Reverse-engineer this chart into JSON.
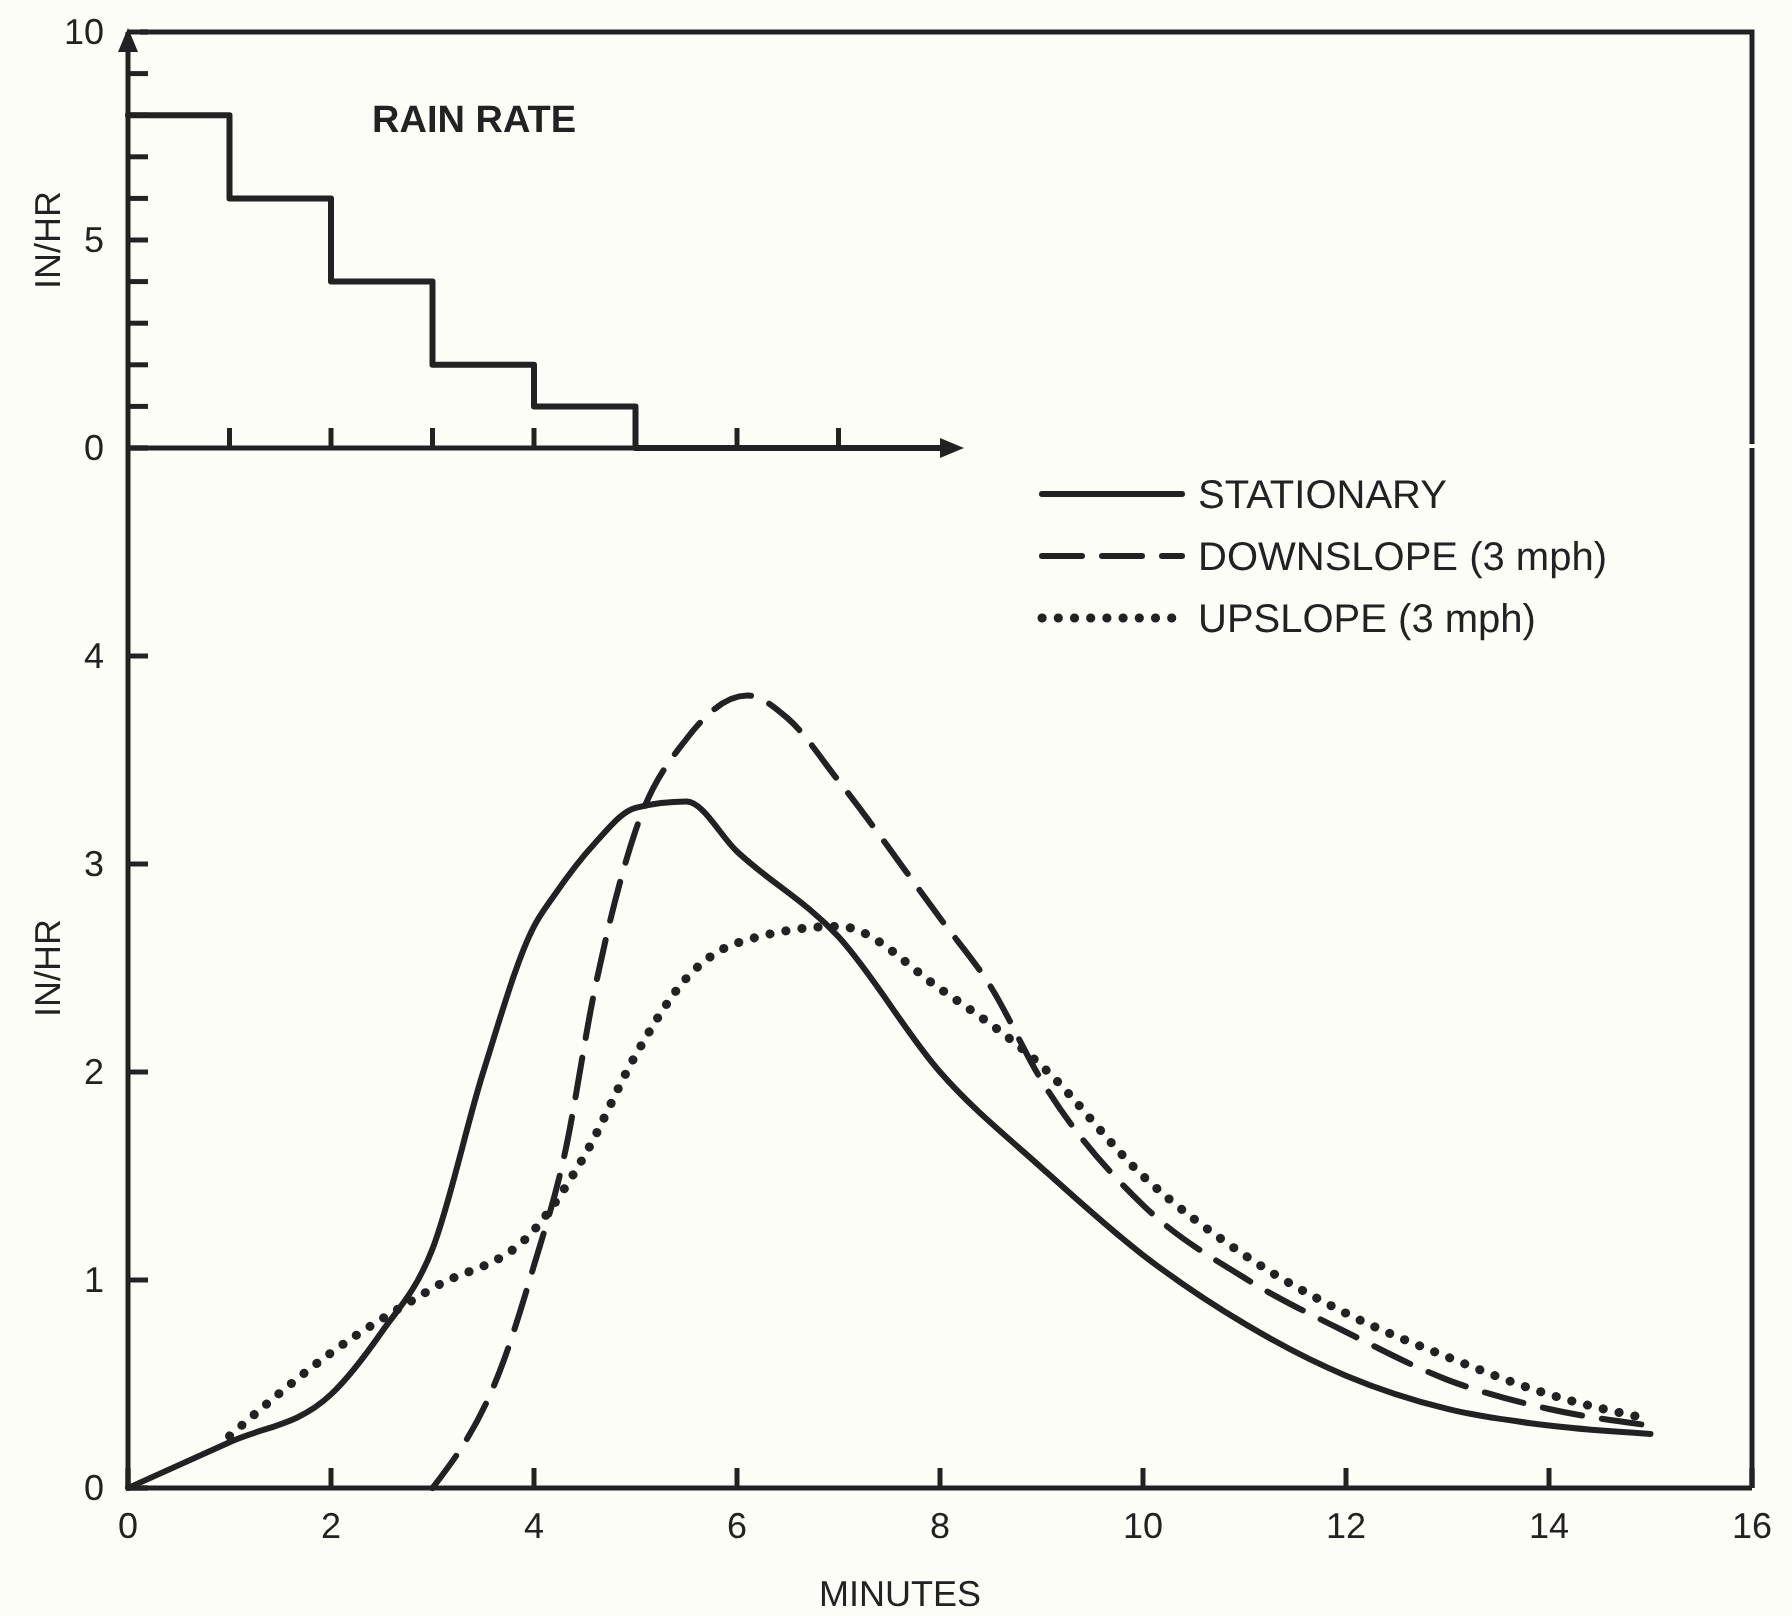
{
  "chart_data": [
    {
      "type": "step",
      "title": "RAIN RATE",
      "ylabel": "IN/HR",
      "categories": [
        null,
        null,
        null,
        null,
        null,
        null,
        null,
        null,
        null
      ],
      "values": [
        8,
        6,
        4,
        2,
        1,
        0,
        0,
        0,
        0
      ],
      "color": "#222222",
      "ylim": [
        0,
        10
      ],
      "yticks": [
        0,
        {
          "value": 1,
          "label": null
        },
        {
          "value": 2,
          "label": null
        },
        {
          "value": 3,
          "label": null
        },
        {
          "value": 4,
          "label": null
        },
        5,
        {
          "value": 6,
          "label": null
        },
        {
          "value": 7,
          "label": null
        },
        {
          "value": 8,
          "label": null
        },
        {
          "value": 9,
          "label": null
        },
        10
      ]
    },
    {
      "type": "line",
      "xlabel": "MINUTES",
      "ylabel": "IN/HR",
      "xlim": [
        0,
        16
      ],
      "ylim": [
        0,
        5
      ],
      "xticks": [
        0,
        2,
        4,
        6,
        8,
        10,
        12,
        14,
        16
      ],
      "yticks": [
        0,
        1,
        2,
        3,
        4
      ],
      "legend": "top right",
      "marker": "none",
      "series": [
        {
          "name": "STATIONARY",
          "color": "#222222",
          "line_style": "solid",
          "x": [
            0,
            1,
            2,
            2.5,
            3,
            3.5,
            4,
            4.2,
            4.6,
            5,
            5.5,
            6,
            7,
            8,
            9,
            10,
            11,
            12,
            13,
            14,
            15
          ],
          "values": [
            0,
            0.22,
            0.45,
            0.75,
            1.15,
            2.0,
            2.7,
            2.85,
            3.1,
            3.27,
            3.3,
            3.06,
            2.65,
            2.0,
            1.54,
            1.12,
            0.79,
            0.54,
            0.38,
            0.3,
            0.26
          ]
        },
        {
          "name": "DOWNSLOPE (3 mph)",
          "color": "#222222",
          "line_style": "dashed",
          "x": [
            3,
            3.7,
            4,
            4.3,
            4.6,
            5,
            5.5,
            6.1,
            6.5,
            7,
            8,
            8.5,
            9,
            10,
            11,
            12,
            13,
            14,
            15
          ],
          "values": [
            0,
            0.61,
            1.07,
            1.6,
            2.4,
            3.16,
            3.6,
            3.81,
            3.7,
            3.4,
            2.74,
            2.41,
            1.96,
            1.36,
            1.01,
            0.75,
            0.52,
            0.38,
            0.3
          ]
        },
        {
          "name": "UPSLOPE (3 mph)",
          "color": "#222222",
          "line_style": "dotted",
          "x": [
            1,
            2,
            3,
            4,
            4.5,
            5,
            5.5,
            6,
            7,
            8,
            9,
            10,
            11,
            12,
            13,
            14,
            15
          ],
          "values": [
            0.25,
            0.65,
            0.96,
            1.24,
            1.6,
            2.08,
            2.45,
            2.62,
            2.7,
            2.4,
            2.03,
            1.5,
            1.12,
            0.84,
            0.63,
            0.45,
            0.33
          ]
        }
      ]
    }
  ]
}
